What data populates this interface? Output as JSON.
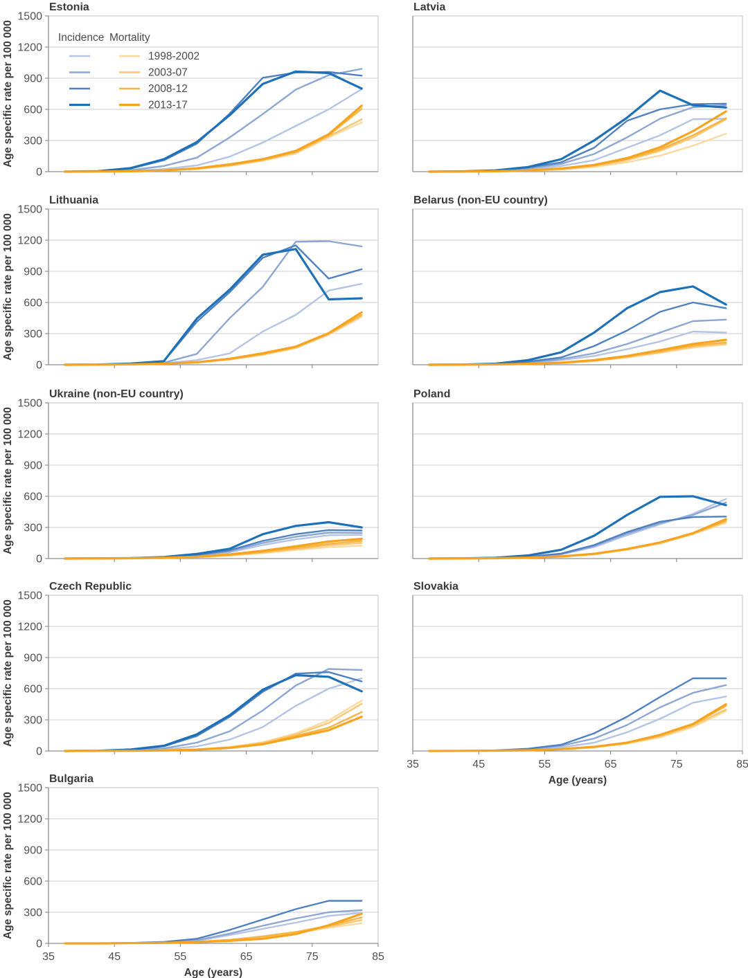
{
  "figure": {
    "background": "#ffffff"
  },
  "chart_data": {
    "type": "line",
    "xlabel": "Age (years)",
    "ylabel": "Age specific rate per 100 000",
    "x_ages": [
      37.5,
      42.5,
      47.5,
      52.5,
      57.5,
      62.5,
      67.5,
      72.5,
      77.5,
      82.5
    ],
    "xlim": [
      35,
      85
    ],
    "ylim": [
      0,
      1500
    ],
    "xticks": [
      35,
      45,
      55,
      65,
      75,
      85
    ],
    "yticks": [
      0,
      300,
      600,
      900,
      1200,
      1500
    ],
    "grid": "horizontal",
    "layout": {
      "rows": 5,
      "cols": 2,
      "legend_position": "inside-top-left-first-panel"
    },
    "style": {
      "grid_color": "#cdcdcd",
      "border_color": "#c2c2c2",
      "axis_color": "#8f8f8f",
      "title_color": "#3a3a3a",
      "tick_color": "#505050",
      "axis_label_color": "#3a3a3a",
      "legend_text_color": "#4a4a4a"
    },
    "legend": {
      "incidence_header": "Incidence",
      "mortality_header": "Mortality",
      "periods": [
        "1998-2002",
        "2003-07",
        "2008-12",
        "2013-17"
      ],
      "incidence_colors": [
        "#b5c4e4",
        "#8ca7d4",
        "#4f81c2",
        "#1e71b8"
      ],
      "mortality_colors": [
        "#fcd9a0",
        "#fac671",
        "#f8b442",
        "#f6a41f"
      ]
    },
    "panels": [
      {
        "title": "Estonia",
        "grid_row": 0,
        "grid_col": 0,
        "y_axis": true,
        "x_axis": false,
        "legend": true,
        "series": {
          "incidence": {
            "1998-2002": [
              0,
              2,
              8,
              25,
              60,
              145,
              280,
              440,
              600,
              795
            ],
            "2003-07": [
              0,
              3,
              15,
              55,
              135,
              330,
              555,
              790,
              930,
              990
            ],
            "2008-12": [
              0,
              5,
              30,
              110,
              270,
              560,
              905,
              955,
              960,
              925
            ],
            "2013-17": [
              0,
              5,
              35,
              120,
              285,
              545,
              845,
              965,
              950,
              800
            ]
          },
          "mortality": {
            "1998-2002": [
              0,
              1,
              3,
              10,
              25,
              55,
              105,
              175,
              330,
              475
            ],
            "2003-07": [
              0,
              1,
              3,
              10,
              28,
              60,
              110,
              185,
              340,
              505
            ],
            "2008-12": [
              0,
              1,
              4,
              12,
              30,
              65,
              115,
              190,
              350,
              605
            ],
            "2013-17": [
              0,
              1,
              4,
              12,
              32,
              70,
              120,
              200,
              360,
              635
            ]
          }
        }
      },
      {
        "title": "Latvia",
        "grid_row": 0,
        "grid_col": 1,
        "y_axis": false,
        "x_axis": false,
        "legend": false,
        "series": {
          "incidence": {
            "1998-2002": [
              0,
              1,
              5,
              20,
              55,
              110,
              230,
              350,
              505,
              510
            ],
            "2003-07": [
              0,
              2,
              8,
              30,
              75,
              170,
              330,
              510,
              620,
              640
            ],
            "2008-12": [
              0,
              2,
              10,
              40,
              90,
              230,
              490,
              600,
              650,
              655
            ],
            "2013-17": [
              0,
              3,
              12,
              45,
              120,
              300,
              520,
              780,
              640,
              618
            ]
          },
          "mortality": {
            "1998-2002": [
              0,
              1,
              2,
              8,
              20,
              45,
              90,
              155,
              250,
              365
            ],
            "2003-07": [
              0,
              1,
              3,
              10,
              25,
              55,
              110,
              200,
              330,
              505
            ],
            "2008-12": [
              0,
              1,
              3,
              10,
              28,
              60,
              120,
              215,
              350,
              515
            ],
            "2013-17": [
              0,
              1,
              4,
              12,
              30,
              65,
              130,
              235,
              390,
              580
            ]
          }
        }
      },
      {
        "title": "Lithuania",
        "grid_row": 1,
        "grid_col": 0,
        "y_axis": true,
        "x_axis": false,
        "legend": false,
        "series": {
          "incidence": {
            "1998-2002": [
              0,
              1,
              5,
              15,
              45,
              110,
              320,
              480,
              715,
              780
            ],
            "2003-07": [
              0,
              1,
              6,
              20,
              105,
              450,
              750,
              1185,
              1190,
              1140
            ],
            "2008-12": [
              0,
              2,
              10,
              35,
              415,
              700,
              1030,
              1150,
              830,
              920
            ],
            "2013-17": [
              0,
              2,
              12,
              35,
              445,
              725,
              1060,
              1115,
              630,
              640
            ]
          },
          "mortality": {
            "1998-2002": [
              0,
              1,
              3,
              8,
              20,
              50,
              95,
              160,
              290,
              460
            ],
            "2003-07": [
              0,
              1,
              3,
              9,
              22,
              52,
              100,
              165,
              295,
              475
            ],
            "2008-12": [
              0,
              1,
              3,
              10,
              25,
              55,
              105,
              170,
              300,
              480
            ],
            "2013-17": [
              0,
              1,
              4,
              10,
              25,
              58,
              110,
              175,
              305,
              505
            ]
          }
        }
      },
      {
        "title": "Belarus (non-EU country)",
        "grid_row": 1,
        "grid_col": 1,
        "y_axis": false,
        "x_axis": false,
        "legend": false,
        "series": {
          "incidence": {
            "1998-2002": [
              0,
              1,
              4,
              15,
              45,
              85,
              150,
              225,
              320,
              310
            ],
            "2003-07": [
              0,
              1,
              5,
              20,
              55,
              110,
              200,
              310,
              420,
              435
            ],
            "2008-12": [
              0,
              2,
              8,
              30,
              70,
              180,
              330,
              510,
              600,
              545
            ],
            "2013-17": [
              0,
              2,
              10,
              45,
              120,
              310,
              545,
              700,
              755,
              580
            ]
          },
          "mortality": {
            "1998-2002": [
              0,
              1,
              2,
              6,
              15,
              35,
              70,
              115,
              165,
              195
            ],
            "2003-07": [
              0,
              1,
              2,
              7,
              17,
              38,
              75,
              120,
              175,
              205
            ],
            "2008-12": [
              0,
              1,
              3,
              8,
              18,
              40,
              80,
              130,
              185,
              215
            ],
            "2013-17": [
              0,
              1,
              3,
              9,
              20,
              45,
              85,
              140,
              200,
              240
            ]
          }
        }
      },
      {
        "title": "Ukraine (non-EU country)",
        "grid_row": 2,
        "grid_col": 0,
        "y_axis": true,
        "x_axis": false,
        "legend": false,
        "series": {
          "incidence": {
            "1998-2002": [
              0,
              1,
              3,
              10,
              25,
              60,
              130,
              185,
              225,
              228
            ],
            "2003-07": [
              0,
              1,
              4,
              12,
              30,
              70,
              150,
              210,
              250,
              247
            ],
            "2008-12": [
              0,
              1,
              4,
              14,
              35,
              80,
              170,
              235,
              275,
              270
            ],
            "2013-17": [
              0,
              2,
              5,
              15,
              45,
              95,
              235,
              315,
              350,
              300
            ]
          },
          "mortality": {
            "1998-2002": [
              0,
              0,
              2,
              5,
              12,
              28,
              52,
              82,
              110,
              125
            ],
            "2003-07": [
              0,
              1,
              2,
              6,
              14,
              32,
              58,
              92,
              128,
              150
            ],
            "2008-12": [
              0,
              1,
              2,
              7,
              16,
              35,
              65,
              102,
              142,
              170
            ],
            "2013-17": [
              0,
              1,
              3,
              8,
              18,
              40,
              75,
              118,
              165,
              190
            ]
          }
        }
      },
      {
        "title": "Poland",
        "grid_row": 2,
        "grid_col": 1,
        "y_axis": false,
        "x_axis": false,
        "legend": false,
        "series": {
          "incidence": {
            "1998-2002": [
              0,
              1,
              4,
              14,
              40,
              110,
              225,
              330,
              430,
              575
            ],
            "2003-07": [
              0,
              1,
              5,
              15,
              42,
              120,
              240,
              340,
              420,
              540
            ],
            "2008-12": [
              0,
              2,
              6,
              18,
              48,
              130,
              255,
              355,
              400,
              405
            ],
            "2013-17": [
              0,
              2,
              8,
              30,
              85,
              220,
              420,
              595,
              600,
              515
            ]
          },
          "mortality": {
            "1998-2002": [
              0,
              1,
              2,
              7,
              18,
              40,
              85,
              145,
              235,
              345
            ],
            "2003-07": [
              0,
              1,
              2,
              8,
              19,
              42,
              88,
              150,
              240,
              355
            ],
            "2008-12": [
              0,
              1,
              3,
              8,
              20,
              44,
              90,
              152,
              242,
              365
            ],
            "2013-17": [
              0,
              1,
              3,
              9,
              21,
              46,
              92,
              155,
              245,
              380
            ]
          }
        }
      },
      {
        "title": "Czech Republic",
        "grid_row": 3,
        "grid_col": 0,
        "y_axis": true,
        "x_axis": false,
        "legend": false,
        "series": {
          "incidence": {
            "1998-2002": [
              0,
              1,
              4,
              15,
              45,
              110,
              230,
              435,
              600,
              700
            ],
            "2003-07": [
              0,
              2,
              8,
              25,
              80,
              190,
              390,
              630,
              790,
              780
            ],
            "2008-12": [
              0,
              2,
              12,
              45,
              145,
              330,
              570,
              745,
              760,
              670
            ],
            "2013-17": [
              0,
              2,
              15,
              50,
              160,
              345,
              590,
              730,
              715,
              575
            ]
          },
          "mortality": {
            "1998-2002": [
              0,
              1,
              2,
              6,
              16,
              38,
              85,
              170,
              295,
              485
            ],
            "2003-07": [
              0,
              1,
              2,
              6,
              15,
              36,
              78,
              158,
              270,
              455
            ],
            "2008-12": [
              0,
              1,
              2,
              6,
              14,
              33,
              70,
              145,
              225,
              375
            ],
            "2013-17": [
              0,
              1,
              2,
              5,
              13,
              30,
              65,
              132,
              200,
              330
            ]
          }
        }
      },
      {
        "title": "Slovakia",
        "grid_row": 3,
        "grid_col": 1,
        "y_axis": false,
        "x_axis": true,
        "legend": false,
        "series": {
          "incidence": {
            "1998-2002": [
              0,
              1,
              3,
              12,
              35,
              80,
              180,
              310,
              465,
              525
            ],
            "2003-07": [
              0,
              1,
              5,
              18,
              50,
              120,
              250,
              420,
              560,
              635
            ],
            "2008-12": [
              0,
              2,
              6,
              22,
              60,
              170,
              330,
              520,
              700,
              700
            ]
          },
          "mortality": {
            "1998-2002": [
              0,
              1,
              2,
              6,
              15,
              35,
              70,
              130,
              230,
              385
            ],
            "2003-07": [
              0,
              1,
              2,
              6,
              16,
              37,
              75,
              140,
              245,
              400
            ],
            "2008-12": [
              0,
              1,
              2,
              7,
              17,
              38,
              78,
              150,
              255,
              435
            ],
            "2013-17": [
              0,
              1,
              3,
              7,
              18,
              40,
              80,
              155,
              260,
              450
            ]
          }
        }
      },
      {
        "title": "Bulgaria",
        "grid_row": 4,
        "grid_col": 0,
        "y_axis": true,
        "x_axis": true,
        "legend": false,
        "series": {
          "incidence": {
            "1998-2002": [
              0,
              1,
              3,
              10,
              25,
              80,
              140,
              200,
              265,
              295
            ],
            "2003-07": [
              0,
              1,
              4,
              12,
              30,
              95,
              170,
              240,
              300,
              320
            ],
            "2008-12": [
              0,
              1,
              5,
              15,
              45,
              130,
              230,
              330,
              410,
              410
            ]
          },
          "mortality": {
            "1998-2002": [
              0,
              1,
              2,
              6,
              15,
              33,
              62,
              100,
              150,
              195
            ],
            "2003-07": [
              0,
              1,
              2,
              6,
              15,
              34,
              65,
              105,
              160,
              225
            ],
            "2008-12": [
              0,
              1,
              3,
              7,
              16,
              35,
              68,
              110,
              170,
              250
            ],
            "2013-17": [
              0,
              0,
              2,
              5,
              12,
              25,
              45,
              90,
              175,
              285
            ]
          }
        }
      }
    ]
  }
}
